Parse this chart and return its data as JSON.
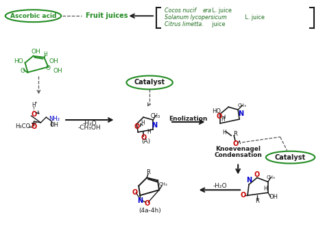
{
  "green": "#228B22",
  "dark_green": "#1a6b1a",
  "red": "#CC0000",
  "blue": "#0000CC",
  "black": "#1a1a1a",
  "gray": "#555555",
  "bg": "#f0f0e8",
  "ascorbic_label": "Ascorbic acid",
  "fruit_label": "Fruit juices",
  "juice1": "Cocos nucif era  L. juice",
  "juice2": "Solanum lycopersicum  L. juice",
  "juice3": "Citrus limetta.  juice",
  "catalyst": "Catalyst",
  "enolization": "Enolization",
  "knoevenagel_line1": "Knoevenagel",
  "knoevenagel_line2": "Condensation",
  "label_A": "(A)",
  "label_4a4h": "(4a-4h)"
}
